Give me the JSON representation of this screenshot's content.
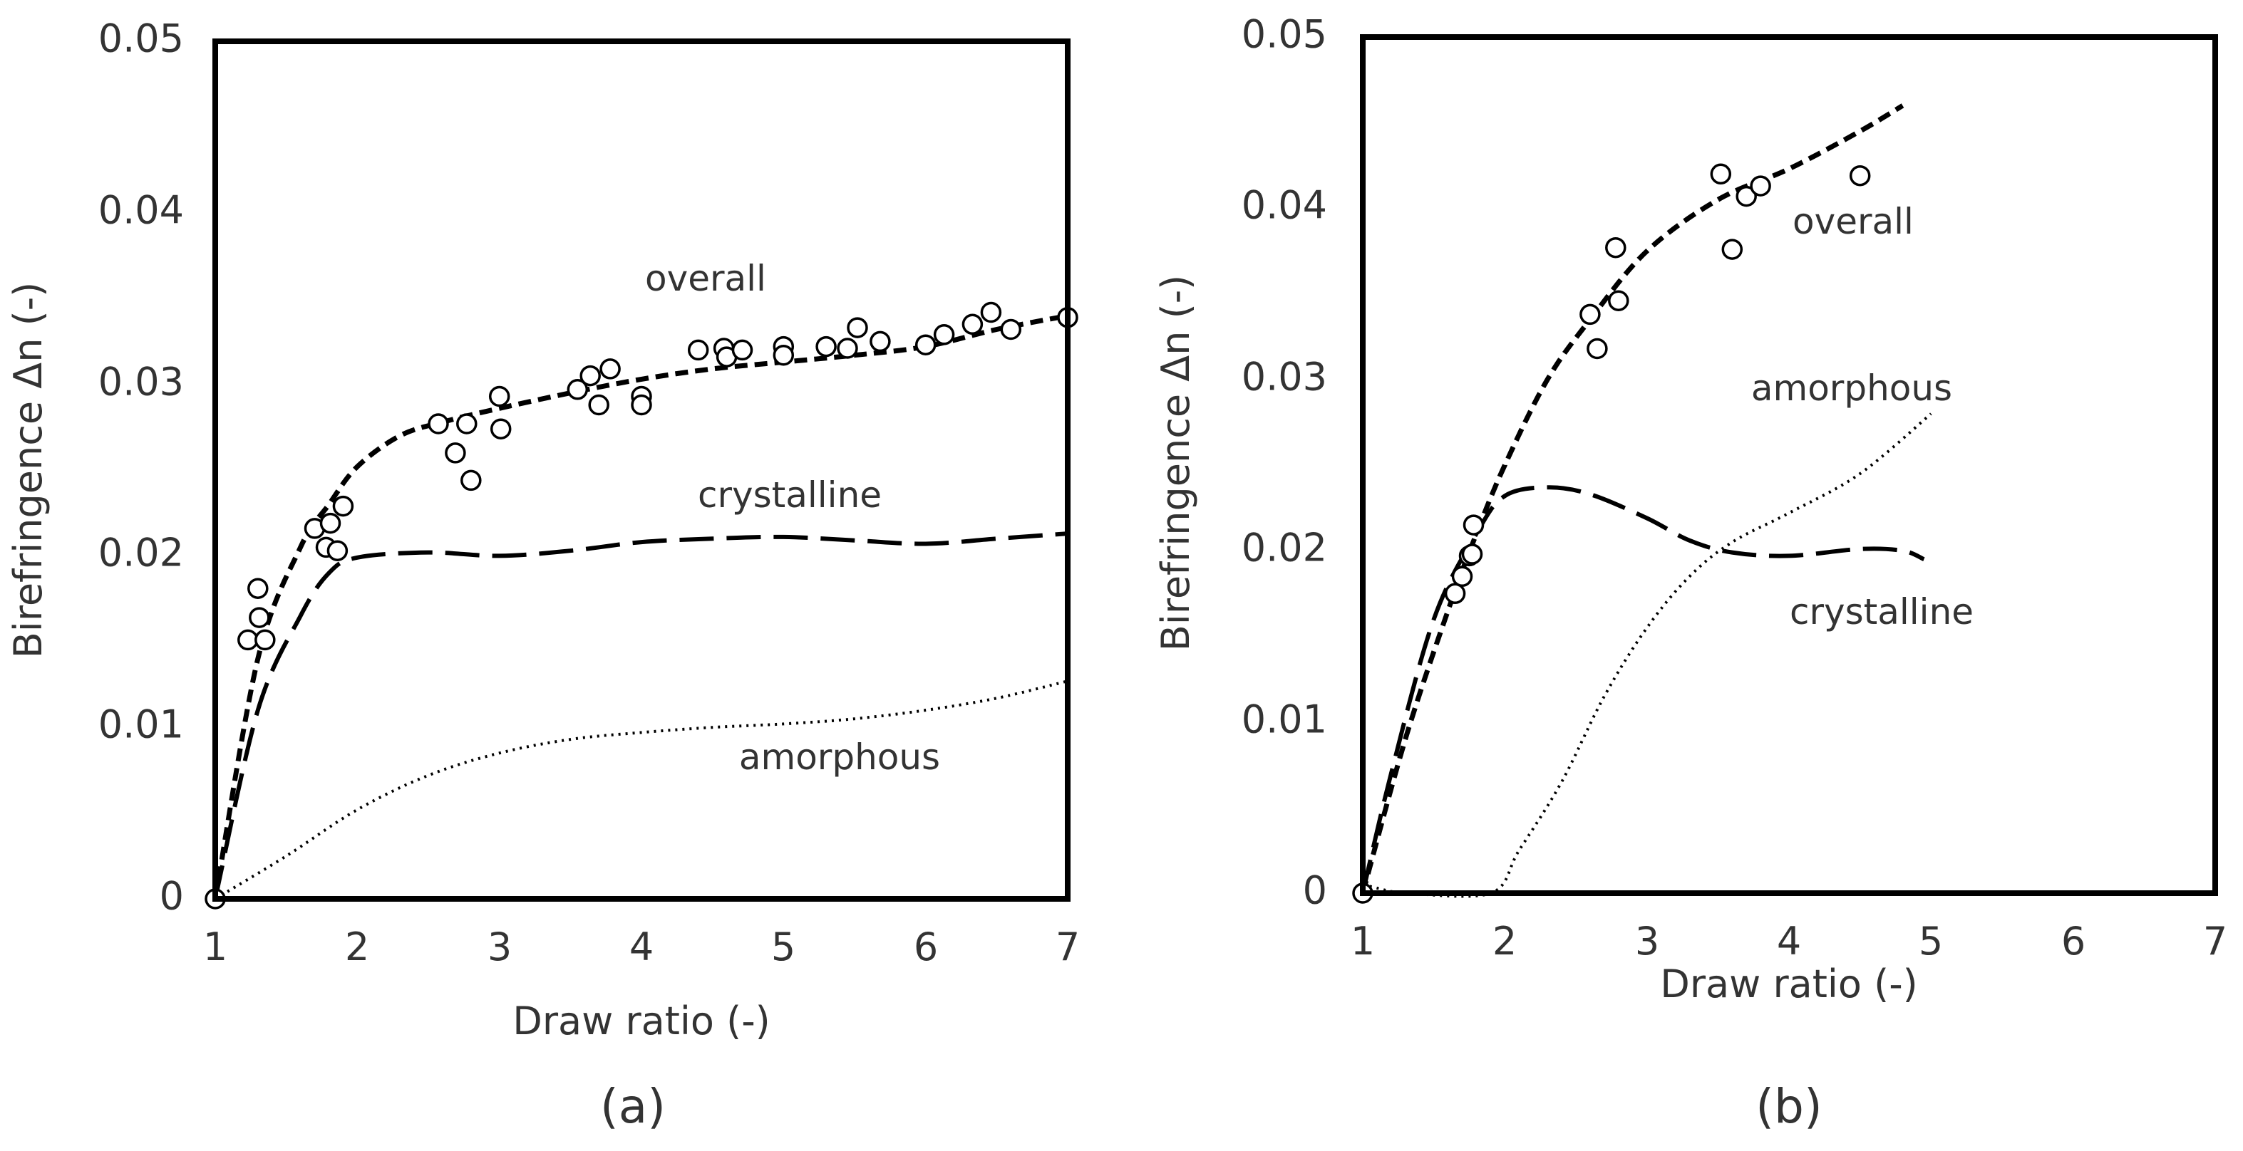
{
  "chart_data": [
    {
      "type": "scatter",
      "panel_label": "(a)",
      "xlabel": "Draw ratio (-)",
      "ylabel": "Birefringence Δn (-)",
      "xlim": [
        1,
        7
      ],
      "ylim": [
        0,
        0.05
      ],
      "xticks": [
        "1",
        "2",
        "3",
        "4",
        "5",
        "6",
        "7"
      ],
      "yticks": [
        "0",
        "0.01",
        "0.02",
        "0.03",
        "0.04",
        "0.05"
      ],
      "grid": false,
      "points": {
        "x": [
          1.0,
          1.23,
          1.3,
          1.31,
          1.35,
          1.7,
          1.78,
          1.81,
          1.86,
          1.9,
          2.57,
          2.69,
          2.77,
          2.8,
          3.0,
          3.01,
          3.55,
          3.64,
          3.7,
          3.78,
          4.0,
          4.0,
          4.4,
          4.58,
          4.6,
          4.71,
          5.0,
          5.0,
          5.3,
          5.45,
          5.52,
          5.68,
          6.0,
          6.13,
          6.33,
          6.46,
          6.6,
          7.0
        ],
        "y": [
          0,
          0.0151,
          0.0181,
          0.0164,
          0.0151,
          0.0216,
          0.0205,
          0.0219,
          0.0203,
          0.0229,
          0.0277,
          0.026,
          0.0277,
          0.0244,
          0.0293,
          0.0274,
          0.0297,
          0.0305,
          0.0288,
          0.0309,
          0.0293,
          0.0288,
          0.032,
          0.0321,
          0.0316,
          0.032,
          0.0322,
          0.0317,
          0.0322,
          0.0321,
          0.0333,
          0.0325,
          0.0323,
          0.0329,
          0.0335,
          0.0342,
          0.0332,
          0.0339
        ]
      },
      "series": [
        {
          "name": "overall",
          "style": "short-dash",
          "x": [
            1,
            1.3,
            1.6,
            1.8,
            2,
            2.3,
            2.6,
            3,
            3.5,
            4,
            4.5,
            5,
            5.5,
            6,
            6.5,
            7
          ],
          "y": [
            0,
            0.014,
            0.0205,
            0.023,
            0.0252,
            0.027,
            0.0278,
            0.0286,
            0.0295,
            0.0303,
            0.0309,
            0.0313,
            0.0317,
            0.0322,
            0.0332,
            0.034
          ]
        },
        {
          "name": "crystalline",
          "style": "long-dash",
          "x": [
            1,
            1.3,
            1.6,
            1.8,
            2,
            2.5,
            3,
            3.5,
            4,
            4.5,
            5,
            5.5,
            6,
            6.5,
            7
          ],
          "y": [
            0,
            0.011,
            0.0165,
            0.019,
            0.0199,
            0.0202,
            0.02,
            0.0203,
            0.0208,
            0.021,
            0.0211,
            0.0209,
            0.0207,
            0.021,
            0.0213
          ]
        },
        {
          "name": "amorphous",
          "style": "dotted",
          "x": [
            1,
            1.5,
            2,
            2.5,
            3,
            3.5,
            4,
            4.5,
            5,
            5.5,
            6,
            6.5,
            7
          ],
          "y": [
            0,
            0.0025,
            0.0052,
            0.0072,
            0.0085,
            0.0093,
            0.0097,
            0.01,
            0.0102,
            0.0105,
            0.011,
            0.0117,
            0.0127
          ]
        }
      ],
      "annotations": [
        "overall",
        "crystalline",
        "amorphous"
      ]
    },
    {
      "type": "scatter",
      "panel_label": "(b)",
      "xlabel": "Draw ratio (-)",
      "ylabel": "Birefringence Δn (-)",
      "xlim": [
        1,
        7
      ],
      "ylim": [
        0,
        0.05
      ],
      "xticks": [
        "1",
        "2",
        "3",
        "4",
        "5",
        "6",
        "7"
      ],
      "yticks": [
        "0",
        "0.01",
        "0.02",
        "0.03",
        "0.04",
        "0.05"
      ],
      "grid": false,
      "points": {
        "x": [
          1.0,
          1.65,
          1.7,
          1.75,
          1.77,
          1.78,
          2.6,
          2.65,
          2.78,
          2.8,
          3.52,
          3.6,
          3.7,
          3.8,
          4.5
        ],
        "y": [
          0,
          0.0175,
          0.0185,
          0.0197,
          0.0198,
          0.0215,
          0.0338,
          0.0318,
          0.0377,
          0.0346,
          0.042,
          0.0376,
          0.0407,
          0.0413,
          0.0419
        ]
      },
      "series": [
        {
          "name": "overall",
          "style": "short-dash",
          "x": [
            1,
            1.3,
            1.6,
            1.8,
            2,
            2.3,
            2.6,
            3,
            3.5,
            4,
            4.5,
            4.8
          ],
          "y": [
            0,
            0.009,
            0.0165,
            0.021,
            0.025,
            0.03,
            0.0335,
            0.0375,
            0.0405,
            0.0423,
            0.0445,
            0.046
          ]
        },
        {
          "name": "crystalline",
          "style": "long-dash",
          "x": [
            1,
            1.2,
            1.5,
            1.8,
            2,
            2.3,
            2.6,
            3,
            3.3,
            3.6,
            4,
            4.5,
            4.8,
            4.95
          ],
          "y": [
            0,
            0.007,
            0.016,
            0.021,
            0.0232,
            0.0237,
            0.0233,
            0.0219,
            0.0206,
            0.0199,
            0.0197,
            0.0201,
            0.02,
            0.0195
          ]
        },
        {
          "name": "amorphous",
          "style": "dotted",
          "x": [
            1,
            1.1,
            1.2,
            1.3,
            1.9,
            2.1,
            2.4,
            2.7,
            3,
            3.3,
            3.6,
            4,
            4.5,
            5
          ],
          "y": [
            0.0005,
            0.0003,
            0.0001,
            0,
            0,
            0.0025,
            0.0065,
            0.0115,
            0.0155,
            0.0185,
            0.0205,
            0.0222,
            0.0245,
            0.028
          ]
        }
      ],
      "annotations": [
        "overall",
        "amorphous",
        "crystalline"
      ]
    }
  ]
}
